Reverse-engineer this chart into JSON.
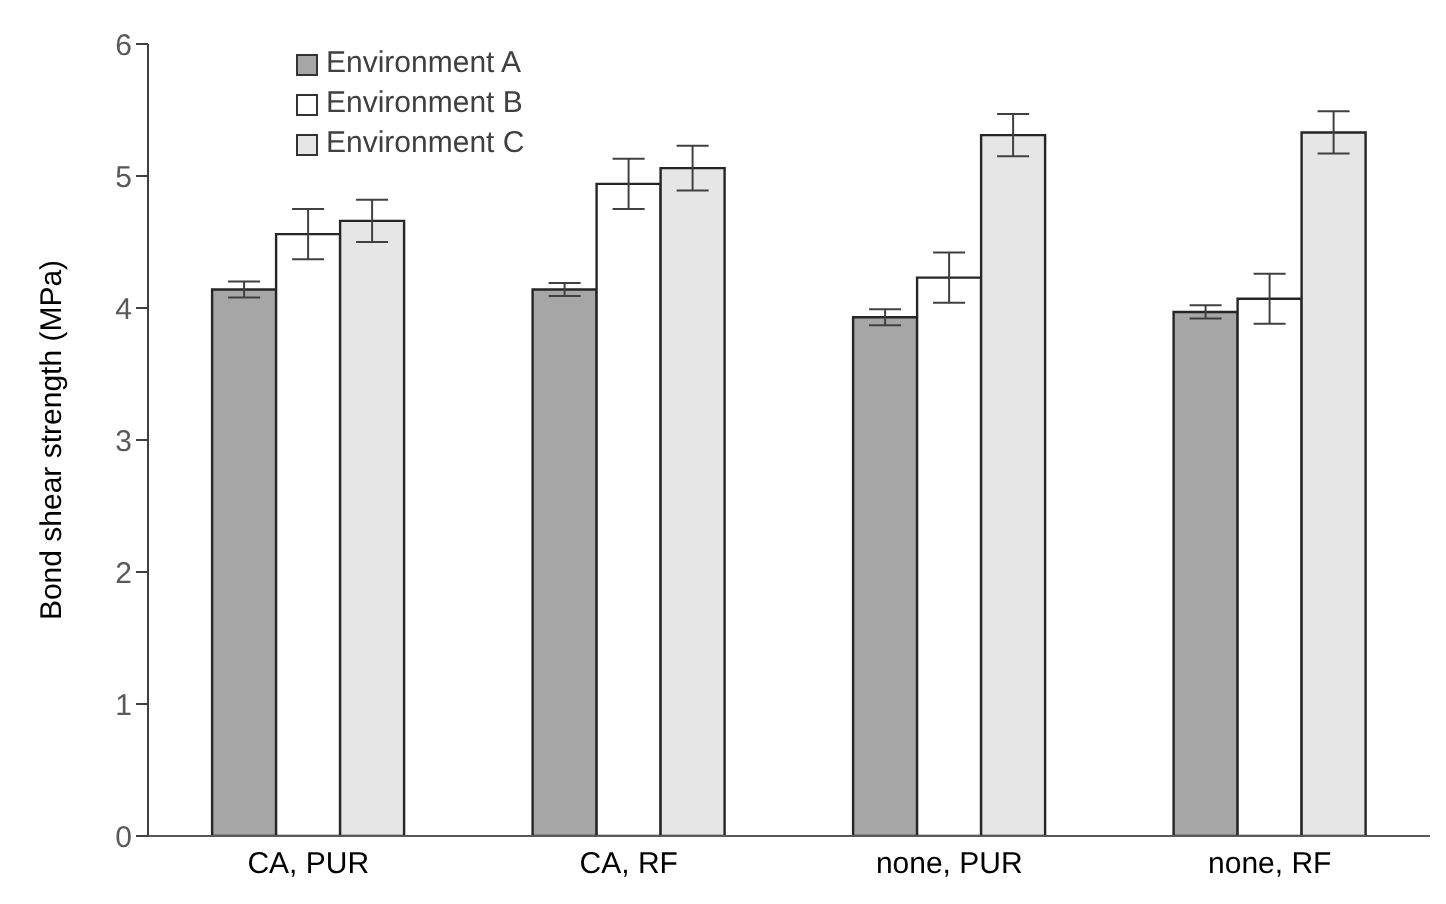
{
  "chart_data": {
    "type": "bar",
    "ylabel": "Bond shear strength (MPa)",
    "categories": [
      "CA, PUR",
      "CA, RF",
      "none, PUR",
      "none, RF"
    ],
    "series": [
      {
        "name": "Environment A",
        "color": "#a6a6a6",
        "values": [
          4.14,
          4.14,
          3.93,
          3.97
        ],
        "errors": [
          0.06,
          0.05,
          0.06,
          0.05
        ]
      },
      {
        "name": "Environment B",
        "color": "#ffffff",
        "values": [
          4.56,
          4.94,
          4.23,
          4.07
        ],
        "errors": [
          0.19,
          0.19,
          0.19,
          0.19
        ]
      },
      {
        "name": "Environment C",
        "color": "#e6e6e6",
        "values": [
          4.66,
          5.06,
          5.31,
          5.33
        ],
        "errors": [
          0.16,
          0.17,
          0.16,
          0.16
        ]
      }
    ],
    "ylim": [
      0,
      6
    ],
    "yticks": [
      0,
      1,
      2,
      3,
      4,
      5,
      6
    ],
    "grid": false,
    "legend": "top left"
  }
}
